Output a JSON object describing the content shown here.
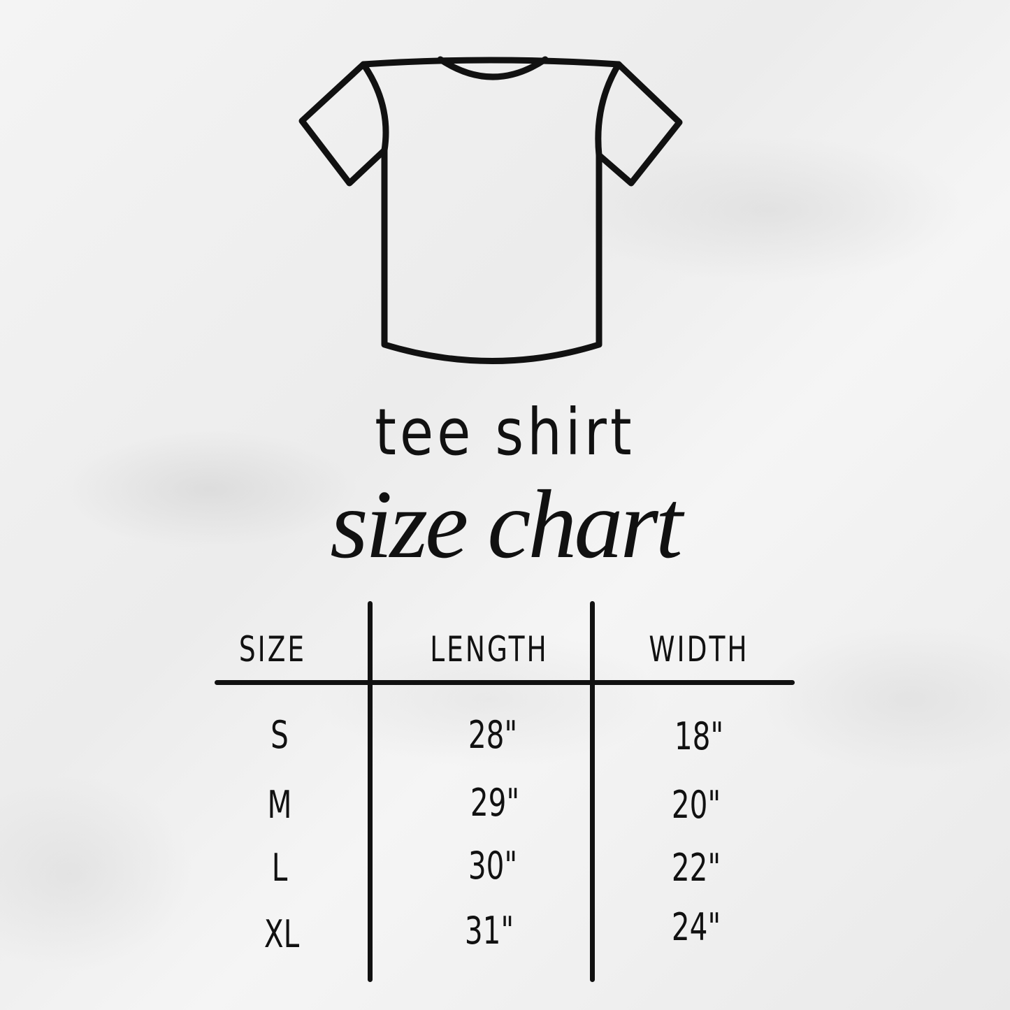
{
  "title_line1": "tee shirt",
  "title_line2": "size chart",
  "icon": "t-shirt-icon",
  "table": {
    "headers": [
      "SIZE",
      "LENGTH",
      "WIDTH"
    ],
    "rows": [
      [
        "S",
        "28\"",
        "18\""
      ],
      [
        "M",
        "29\"",
        "20\""
      ],
      [
        "L",
        "30\"",
        "22\""
      ],
      [
        "XL",
        "31\"",
        "24\""
      ]
    ]
  },
  "colors": {
    "ink": "#111111",
    "background": "#f0f0f0"
  }
}
